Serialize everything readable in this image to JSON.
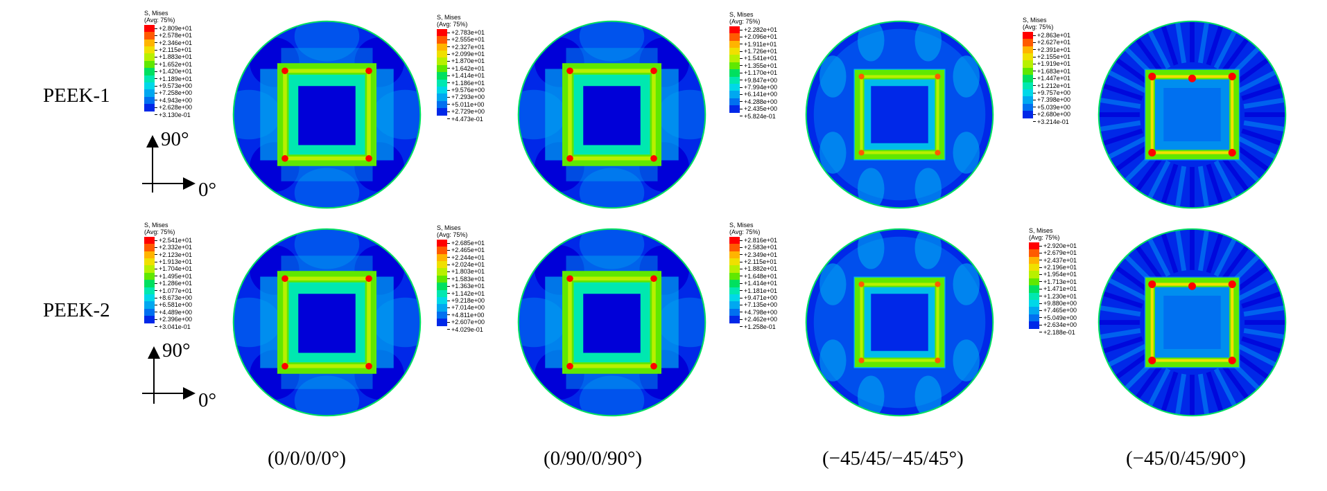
{
  "rows": [
    {
      "label": "PEEK-1",
      "panels": [
        {
          "legend": {
            "title1": "S, Mises",
            "title2": "(Avg: 75%)",
            "values": [
              "+2.809e+01",
              "+2.578e+01",
              "+2.346e+01",
              "+2.115e+01",
              "+1.883e+01",
              "+1.652e+01",
              "+1.420e+01",
              "+1.189e+01",
              "+9.573e+00",
              "+7.258e+00",
              "+4.943e+00",
              "+2.628e+00",
              "+3.130e-01"
            ]
          },
          "pattern": "square"
        },
        {
          "legend": {
            "title1": "S, Mises",
            "title2": "(Avg: 75%)",
            "values": [
              "+2.783e+01",
              "+2.555e+01",
              "+2.327e+01",
              "+2.099e+01",
              "+1.870e+01",
              "+1.642e+01",
              "+1.414e+01",
              "+1.186e+01",
              "+9.576e+00",
              "+7.293e+00",
              "+5.011e+00",
              "+2.729e+00",
              "+4.473e-01"
            ]
          },
          "pattern": "square"
        },
        {
          "legend": {
            "title1": "S, Mises",
            "title2": "(Avg: 75%)",
            "values": [
              "+2.282e+01",
              "+2.096e+01",
              "+1.911e+01",
              "+1.726e+01",
              "+1.541e+01",
              "+1.355e+01",
              "+1.170e+01",
              "+9.847e+00",
              "+7.994e+00",
              "+6.141e+00",
              "+4.288e+00",
              "+2.435e+00",
              "+5.824e-01"
            ]
          },
          "pattern": "diag"
        },
        {
          "legend": {
            "title1": "S, Mises",
            "title2": "(Avg: 75%)",
            "values": [
              "+2.863e+01",
              "+2.627e+01",
              "+2.391e+01",
              "+2.155e+01",
              "+1.919e+01",
              "+1.683e+01",
              "+1.447e+01",
              "+1.212e+01",
              "+9.757e+00",
              "+7.398e+00",
              "+5.039e+00",
              "+2.680e+00",
              "+3.214e-01"
            ]
          },
          "pattern": "quasi"
        }
      ]
    },
    {
      "label": "PEEK-2",
      "panels": [
        {
          "legend": {
            "title1": "S, Mises",
            "title2": "(Avg: 75%)",
            "values": [
              "+2.541e+01",
              "+2.332e+01",
              "+2.123e+01",
              "+1.913e+01",
              "+1.704e+01",
              "+1.495e+01",
              "+1.286e+01",
              "+1.077e+01",
              "+8.673e+00",
              "+6.581e+00",
              "+4.489e+00",
              "+2.396e+00",
              "+3.041e-01"
            ]
          },
          "pattern": "square"
        },
        {
          "legend": {
            "title1": "S, Mises",
            "title2": "(Avg: 75%)",
            "values": [
              "+2.685e+01",
              "+2.465e+01",
              "+2.244e+01",
              "+2.024e+01",
              "+1.803e+01",
              "+1.583e+01",
              "+1.363e+01",
              "+1.142e+01",
              "+9.218e+00",
              "+7.014e+00",
              "+4.811e+00",
              "+2.607e+00",
              "+4.029e-01"
            ]
          },
          "pattern": "square"
        },
        {
          "legend": {
            "title1": "S, Mises",
            "title2": "(Avg: 75%)",
            "values": [
              "+2.816e+01",
              "+2.583e+01",
              "+2.349e+01",
              "+2.115e+01",
              "+1.882e+01",
              "+1.648e+01",
              "+1.414e+01",
              "+1.181e+01",
              "+9.471e+00",
              "+7.135e+00",
              "+4.798e+00",
              "+2.462e+00",
              "+1.258e-01"
            ]
          },
          "pattern": "diag"
        },
        {
          "legend": {
            "title1": "S, Mises",
            "title2": "(Avg: 75%)",
            "values": [
              "+2.920e+01",
              "+2.679e+01",
              "+2.437e+01",
              "+2.196e+01",
              "+1.954e+01",
              "+1.713e+01",
              "+1.471e+01",
              "+1.230e+01",
              "+9.880e+00",
              "+7.465e+00",
              "+5.049e+00",
              "+2.634e+00",
              "+2.188e-01"
            ]
          },
          "pattern": "quasi"
        }
      ]
    }
  ],
  "axes": {
    "vertical": "90°",
    "horizontal": "0°"
  },
  "captions": [
    "(0/0/0/0°)",
    "(0/90/0/90°)",
    "(−45/45/−45/45°)",
    "(−45/0/45/90°)"
  ],
  "colormap": [
    "#ff0000",
    "#ff5a00",
    "#ffb400",
    "#f0e000",
    "#b8f000",
    "#60e800",
    "#00e060",
    "#00e8b0",
    "#00d8e8",
    "#00a8f0",
    "#0070f0",
    "#0028e8",
    "#0000d8"
  ]
}
